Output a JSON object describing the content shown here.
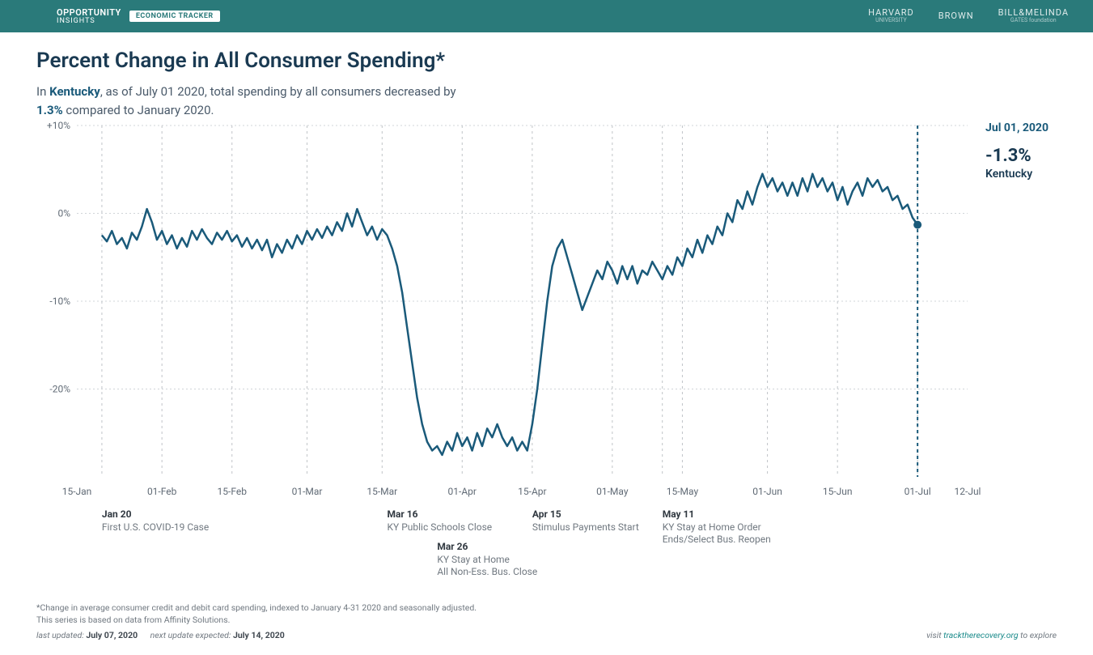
{
  "header": {
    "logo_top": "OPPORTUNITY",
    "logo_bottom": "INSIGHTS",
    "badge": "ECONOMIC TRACKER",
    "partners": [
      {
        "name": "HARVARD",
        "sub": "UNIVERSITY"
      },
      {
        "name": "BROWN",
        "sub": ""
      },
      {
        "name": "BILL&MELINDA",
        "sub": "GATES foundation"
      }
    ]
  },
  "title": "Percent Change in All Consumer Spending*",
  "subtitle": {
    "prefix": "In ",
    "location": "Kentucky",
    "mid": ", as of July 01 2020, total spending by all consumers decreased by ",
    "value": "1.3%",
    "suffix": " compared to January 2020."
  },
  "readout": {
    "date": "Jul 01, 2020",
    "value": "-1.3%",
    "series": "Kentucky"
  },
  "chart": {
    "type": "line",
    "line_color": "#1a5a7a",
    "line_width": 2.5,
    "background_color": "#ffffff",
    "grid_color": "#d0d4d8",
    "vgrid_color": "#c0c4c8",
    "cursor_color": "#1a5a7a",
    "x_domain_days": [
      0,
      178
    ],
    "y_domain": [
      -30,
      10
    ],
    "y_ticks": [
      {
        "v": 10,
        "label": "+10%"
      },
      {
        "v": 0,
        "label": "0%"
      },
      {
        "v": -10,
        "label": "-10%"
      },
      {
        "v": -20,
        "label": "-20%"
      }
    ],
    "x_ticks": [
      {
        "day": 0,
        "label": "15-Jan",
        "grid": false
      },
      {
        "day": 17,
        "label": "01-Feb",
        "grid": true
      },
      {
        "day": 31,
        "label": "15-Feb",
        "grid": true
      },
      {
        "day": 46,
        "label": "01-Mar",
        "grid": true
      },
      {
        "day": 61,
        "label": "15-Mar",
        "grid": true
      },
      {
        "day": 77,
        "label": "01-Apr",
        "grid": true
      },
      {
        "day": 91,
        "label": "15-Apr",
        "grid": true
      },
      {
        "day": 107,
        "label": "01-May",
        "grid": true
      },
      {
        "day": 121,
        "label": "15-May",
        "grid": true
      },
      {
        "day": 138,
        "label": "01-Jun",
        "grid": true
      },
      {
        "day": 152,
        "label": "15-Jun",
        "grid": true
      },
      {
        "day": 168,
        "label": "01-Jul",
        "grid": true
      },
      {
        "day": 178,
        "label": "12-Jul",
        "grid": false
      }
    ],
    "cursor_day": 168,
    "cursor_value": -1.3,
    "annotations": [
      {
        "day": 5,
        "date": "Jan 20",
        "lines": [
          "First U.S. COVID-19 Case"
        ],
        "grid": true
      },
      {
        "day": 62,
        "date": "Mar 16",
        "lines": [
          "KY Public Schools Close"
        ],
        "grid": false
      },
      {
        "day": 72,
        "date": "Mar 26",
        "lines": [
          "KY Stay at Home",
          "All Non-Ess. Bus. Close"
        ],
        "grid": false,
        "y_offset": 40
      },
      {
        "day": 91,
        "date": "Apr 15",
        "lines": [
          "Stimulus Payments Start"
        ],
        "grid": false
      },
      {
        "day": 117,
        "date": "May 11",
        "lines": [
          "KY Stay at Home Order",
          "Ends/Select Bus. Reopen"
        ],
        "grid": true
      }
    ],
    "series": [
      {
        "d": 5,
        "v": -2.5
      },
      {
        "d": 6,
        "v": -3.2
      },
      {
        "d": 7,
        "v": -2.0
      },
      {
        "d": 8,
        "v": -3.5
      },
      {
        "d": 9,
        "v": -2.8
      },
      {
        "d": 10,
        "v": -4.0
      },
      {
        "d": 11,
        "v": -2.2
      },
      {
        "d": 12,
        "v": -3.0
      },
      {
        "d": 13,
        "v": -1.5
      },
      {
        "d": 14,
        "v": 0.5
      },
      {
        "d": 15,
        "v": -1.0
      },
      {
        "d": 16,
        "v": -3.0
      },
      {
        "d": 17,
        "v": -2.0
      },
      {
        "d": 18,
        "v": -3.5
      },
      {
        "d": 19,
        "v": -2.5
      },
      {
        "d": 20,
        "v": -4.0
      },
      {
        "d": 21,
        "v": -2.8
      },
      {
        "d": 22,
        "v": -3.8
      },
      {
        "d": 23,
        "v": -2.0
      },
      {
        "d": 24,
        "v": -3.0
      },
      {
        "d": 25,
        "v": -1.8
      },
      {
        "d": 26,
        "v": -2.8
      },
      {
        "d": 27,
        "v": -3.5
      },
      {
        "d": 28,
        "v": -2.2
      },
      {
        "d": 29,
        "v": -3.0
      },
      {
        "d": 30,
        "v": -2.0
      },
      {
        "d": 31,
        "v": -3.2
      },
      {
        "d": 32,
        "v": -2.5
      },
      {
        "d": 33,
        "v": -3.8
      },
      {
        "d": 34,
        "v": -2.8
      },
      {
        "d": 35,
        "v": -4.0
      },
      {
        "d": 36,
        "v": -3.0
      },
      {
        "d": 37,
        "v": -4.2
      },
      {
        "d": 38,
        "v": -3.0
      },
      {
        "d": 39,
        "v": -5.0
      },
      {
        "d": 40,
        "v": -3.5
      },
      {
        "d": 41,
        "v": -4.5
      },
      {
        "d": 42,
        "v": -3.0
      },
      {
        "d": 43,
        "v": -4.0
      },
      {
        "d": 44,
        "v": -2.5
      },
      {
        "d": 45,
        "v": -3.5
      },
      {
        "d": 46,
        "v": -2.0
      },
      {
        "d": 47,
        "v": -3.0
      },
      {
        "d": 48,
        "v": -1.8
      },
      {
        "d": 49,
        "v": -2.8
      },
      {
        "d": 50,
        "v": -1.5
      },
      {
        "d": 51,
        "v": -2.5
      },
      {
        "d": 52,
        "v": -1.0
      },
      {
        "d": 53,
        "v": -2.0
      },
      {
        "d": 54,
        "v": 0.0
      },
      {
        "d": 55,
        "v": -1.5
      },
      {
        "d": 56,
        "v": 0.5
      },
      {
        "d": 57,
        "v": -1.0
      },
      {
        "d": 58,
        "v": -2.5
      },
      {
        "d": 59,
        "v": -1.5
      },
      {
        "d": 60,
        "v": -3.0
      },
      {
        "d": 61,
        "v": -1.8
      },
      {
        "d": 62,
        "v": -2.5
      },
      {
        "d": 63,
        "v": -4.0
      },
      {
        "d": 64,
        "v": -6.0
      },
      {
        "d": 65,
        "v": -9.0
      },
      {
        "d": 66,
        "v": -13.0
      },
      {
        "d": 67,
        "v": -17.0
      },
      {
        "d": 68,
        "v": -21.0
      },
      {
        "d": 69,
        "v": -24.0
      },
      {
        "d": 70,
        "v": -26.0
      },
      {
        "d": 71,
        "v": -27.0
      },
      {
        "d": 72,
        "v": -26.5
      },
      {
        "d": 73,
        "v": -27.5
      },
      {
        "d": 74,
        "v": -26.0
      },
      {
        "d": 75,
        "v": -27.0
      },
      {
        "d": 76,
        "v": -25.0
      },
      {
        "d": 77,
        "v": -26.5
      },
      {
        "d": 78,
        "v": -25.5
      },
      {
        "d": 79,
        "v": -27.0
      },
      {
        "d": 80,
        "v": -25.0
      },
      {
        "d": 81,
        "v": -26.5
      },
      {
        "d": 82,
        "v": -24.5
      },
      {
        "d": 83,
        "v": -25.5
      },
      {
        "d": 84,
        "v": -24.0
      },
      {
        "d": 85,
        "v": -25.5
      },
      {
        "d": 86,
        "v": -26.5
      },
      {
        "d": 87,
        "v": -25.5
      },
      {
        "d": 88,
        "v": -27.0
      },
      {
        "d": 89,
        "v": -26.0
      },
      {
        "d": 90,
        "v": -27.0
      },
      {
        "d": 91,
        "v": -24.0
      },
      {
        "d": 92,
        "v": -20.0
      },
      {
        "d": 93,
        "v": -15.0
      },
      {
        "d": 94,
        "v": -10.0
      },
      {
        "d": 95,
        "v": -6.0
      },
      {
        "d": 96,
        "v": -4.0
      },
      {
        "d": 97,
        "v": -3.0
      },
      {
        "d": 98,
        "v": -5.0
      },
      {
        "d": 99,
        "v": -7.0
      },
      {
        "d": 100,
        "v": -9.0
      },
      {
        "d": 101,
        "v": -11.0
      },
      {
        "d": 102,
        "v": -9.5
      },
      {
        "d": 103,
        "v": -8.0
      },
      {
        "d": 104,
        "v": -6.5
      },
      {
        "d": 105,
        "v": -7.5
      },
      {
        "d": 106,
        "v": -5.5
      },
      {
        "d": 107,
        "v": -6.5
      },
      {
        "d": 108,
        "v": -8.0
      },
      {
        "d": 109,
        "v": -6.0
      },
      {
        "d": 110,
        "v": -7.5
      },
      {
        "d": 111,
        "v": -6.0
      },
      {
        "d": 112,
        "v": -8.0
      },
      {
        "d": 113,
        "v": -6.5
      },
      {
        "d": 114,
        "v": -7.0
      },
      {
        "d": 115,
        "v": -5.5
      },
      {
        "d": 116,
        "v": -6.5
      },
      {
        "d": 117,
        "v": -7.5
      },
      {
        "d": 118,
        "v": -6.0
      },
      {
        "d": 119,
        "v": -7.0
      },
      {
        "d": 120,
        "v": -5.0
      },
      {
        "d": 121,
        "v": -6.0
      },
      {
        "d": 122,
        "v": -4.0
      },
      {
        "d": 123,
        "v": -5.0
      },
      {
        "d": 124,
        "v": -3.0
      },
      {
        "d": 125,
        "v": -4.5
      },
      {
        "d": 126,
        "v": -2.5
      },
      {
        "d": 127,
        "v": -3.5
      },
      {
        "d": 128,
        "v": -1.5
      },
      {
        "d": 129,
        "v": -2.5
      },
      {
        "d": 130,
        "v": 0.0
      },
      {
        "d": 131,
        "v": -1.0
      },
      {
        "d": 132,
        "v": 1.5
      },
      {
        "d": 133,
        "v": 0.5
      },
      {
        "d": 134,
        "v": 2.5
      },
      {
        "d": 135,
        "v": 1.0
      },
      {
        "d": 136,
        "v": 3.0
      },
      {
        "d": 137,
        "v": 4.5
      },
      {
        "d": 138,
        "v": 3.0
      },
      {
        "d": 139,
        "v": 4.0
      },
      {
        "d": 140,
        "v": 2.5
      },
      {
        "d": 141,
        "v": 3.5
      },
      {
        "d": 142,
        "v": 2.0
      },
      {
        "d": 143,
        "v": 3.5
      },
      {
        "d": 144,
        "v": 2.0
      },
      {
        "d": 145,
        "v": 4.0
      },
      {
        "d": 146,
        "v": 2.5
      },
      {
        "d": 147,
        "v": 4.5
      },
      {
        "d": 148,
        "v": 3.0
      },
      {
        "d": 149,
        "v": 4.0
      },
      {
        "d": 150,
        "v": 2.5
      },
      {
        "d": 151,
        "v": 3.5
      },
      {
        "d": 152,
        "v": 1.5
      },
      {
        "d": 153,
        "v": 3.0
      },
      {
        "d": 154,
        "v": 1.0
      },
      {
        "d": 155,
        "v": 2.5
      },
      {
        "d": 156,
        "v": 3.5
      },
      {
        "d": 157,
        "v": 2.0
      },
      {
        "d": 158,
        "v": 4.0
      },
      {
        "d": 159,
        "v": 3.0
      },
      {
        "d": 160,
        "v": 3.8
      },
      {
        "d": 161,
        "v": 2.5
      },
      {
        "d": 162,
        "v": 3.0
      },
      {
        "d": 163,
        "v": 1.5
      },
      {
        "d": 164,
        "v": 2.0
      },
      {
        "d": 165,
        "v": 0.5
      },
      {
        "d": 166,
        "v": 1.0
      },
      {
        "d": 167,
        "v": -0.5
      },
      {
        "d": 168,
        "v": -1.3
      }
    ]
  },
  "footnotes": {
    "line1": "*Change in average consumer credit and debit card spending, indexed to January 4-31 2020 and seasonally adjusted.",
    "line2": "This series is based on data from Affinity Solutions.",
    "last_updated_label": "last updated: ",
    "last_updated": "July 07, 2020",
    "next_update_label": "next update expected: ",
    "next_update": "July 14, 2020",
    "visit_prefix": "visit ",
    "visit_link": "tracktherecovery.org",
    "visit_suffix": " to explore"
  }
}
